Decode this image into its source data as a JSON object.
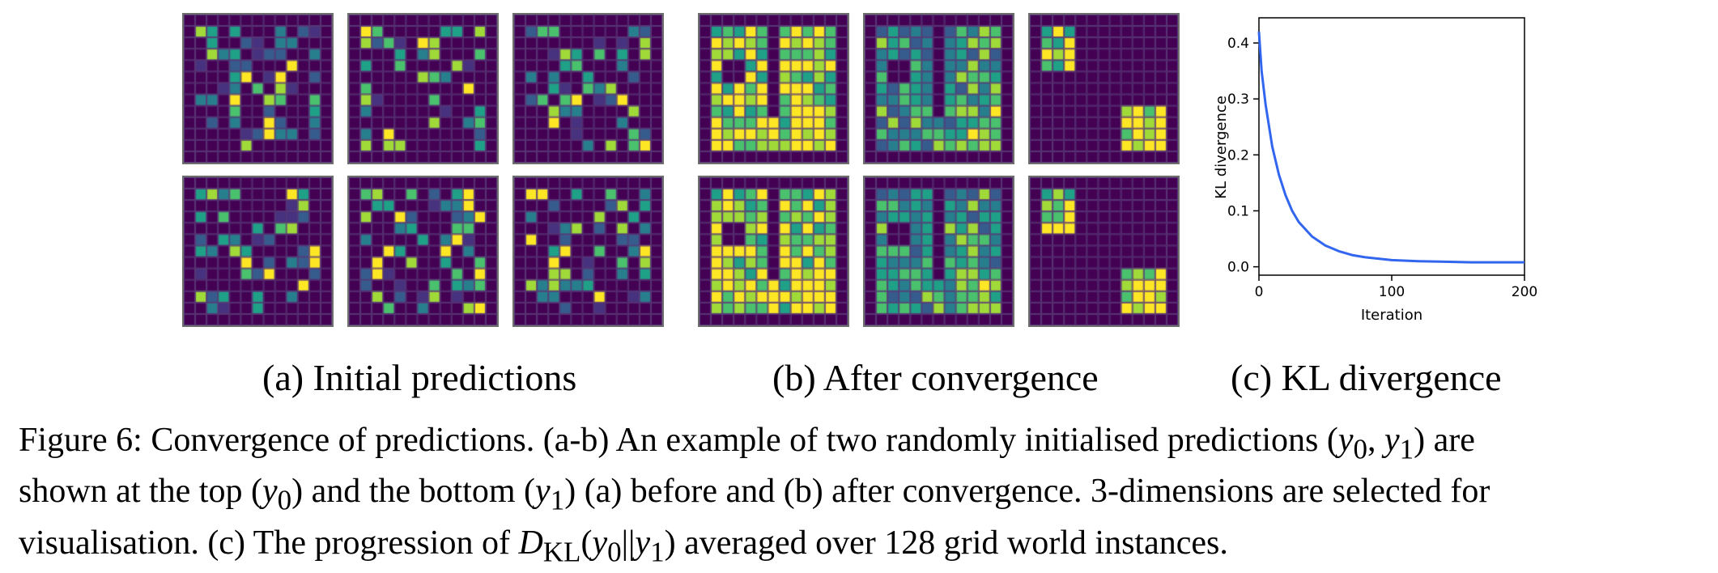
{
  "panels": {
    "a": {
      "top": [
        "grid-a-top-1",
        "grid-a-top-2",
        "grid-a-top-3"
      ],
      "bottom": [
        "grid-a-bot-1",
        "grid-a-bot-2",
        "grid-a-bot-3"
      ]
    },
    "b": {
      "top": [
        "grid-b-top-1",
        "grid-b-top-2",
        "grid-b-top-3"
      ],
      "bottom": [
        "grid-b-bot-1",
        "grid-b-bot-2",
        "grid-b-bot-3"
      ]
    }
  },
  "subcaptions": {
    "a": "(a) Initial predictions",
    "b": "(b) After convergence",
    "c": "(c) KL divergence"
  },
  "caption": {
    "line1_prefix": "Figure 6: Convergence of predictions. (a-b) An example of two randomly initialised predictions (",
    "y0": "y",
    "sub0": "0",
    "comma": ", ",
    "y1": "y",
    "sub1": "1",
    "line1_suffix": ") are",
    "line2_prefix": "shown at the top (",
    "line2_mid": ") and the bottom (",
    "line2_suffix": ") (a) before and (b) after convergence. 3-dimensions are selected for",
    "line3_prefix": "visualisation. (c) The progression of ",
    "dkl": "D",
    "dkl_sub": "KL",
    "dkl_open": "(",
    "dkl_sep": "||",
    "dkl_close": ")",
    "line3_suffix": " averaged over 128 grid world instances."
  },
  "chart_data": {
    "type": "line",
    "title": "",
    "xlabel": "Iteration",
    "ylabel": "KL divergence",
    "xlim": [
      0,
      200
    ],
    "ylim": [
      -0.015,
      0.445
    ],
    "xticks": [
      0,
      100,
      200
    ],
    "yticks": [
      0.0,
      0.1,
      0.2,
      0.3,
      0.4
    ],
    "xtick_labels": [
      "0",
      "100",
      "200"
    ],
    "ytick_labels": [
      "0.0",
      "0.1",
      "0.2",
      "0.3",
      "0.4"
    ],
    "grid": false,
    "series": [
      {
        "color": "#3266ee",
        "x": [
          0,
          2,
          5,
          10,
          15,
          20,
          25,
          30,
          40,
          50,
          60,
          70,
          80,
          100,
          120,
          140,
          160,
          180,
          200
        ],
        "values": [
          0.42,
          0.35,
          0.29,
          0.215,
          0.165,
          0.128,
          0.1,
          0.08,
          0.054,
          0.038,
          0.028,
          0.021,
          0.017,
          0.012,
          0.01,
          0.009,
          0.008,
          0.008,
          0.008
        ]
      }
    ]
  },
  "colors": {
    "viridis": [
      "#440154",
      "#46327e",
      "#365c8d",
      "#277f8e",
      "#1fa187",
      "#4ac16d",
      "#a0da39",
      "#fde725"
    ],
    "cell_line": "#5a3a78"
  }
}
